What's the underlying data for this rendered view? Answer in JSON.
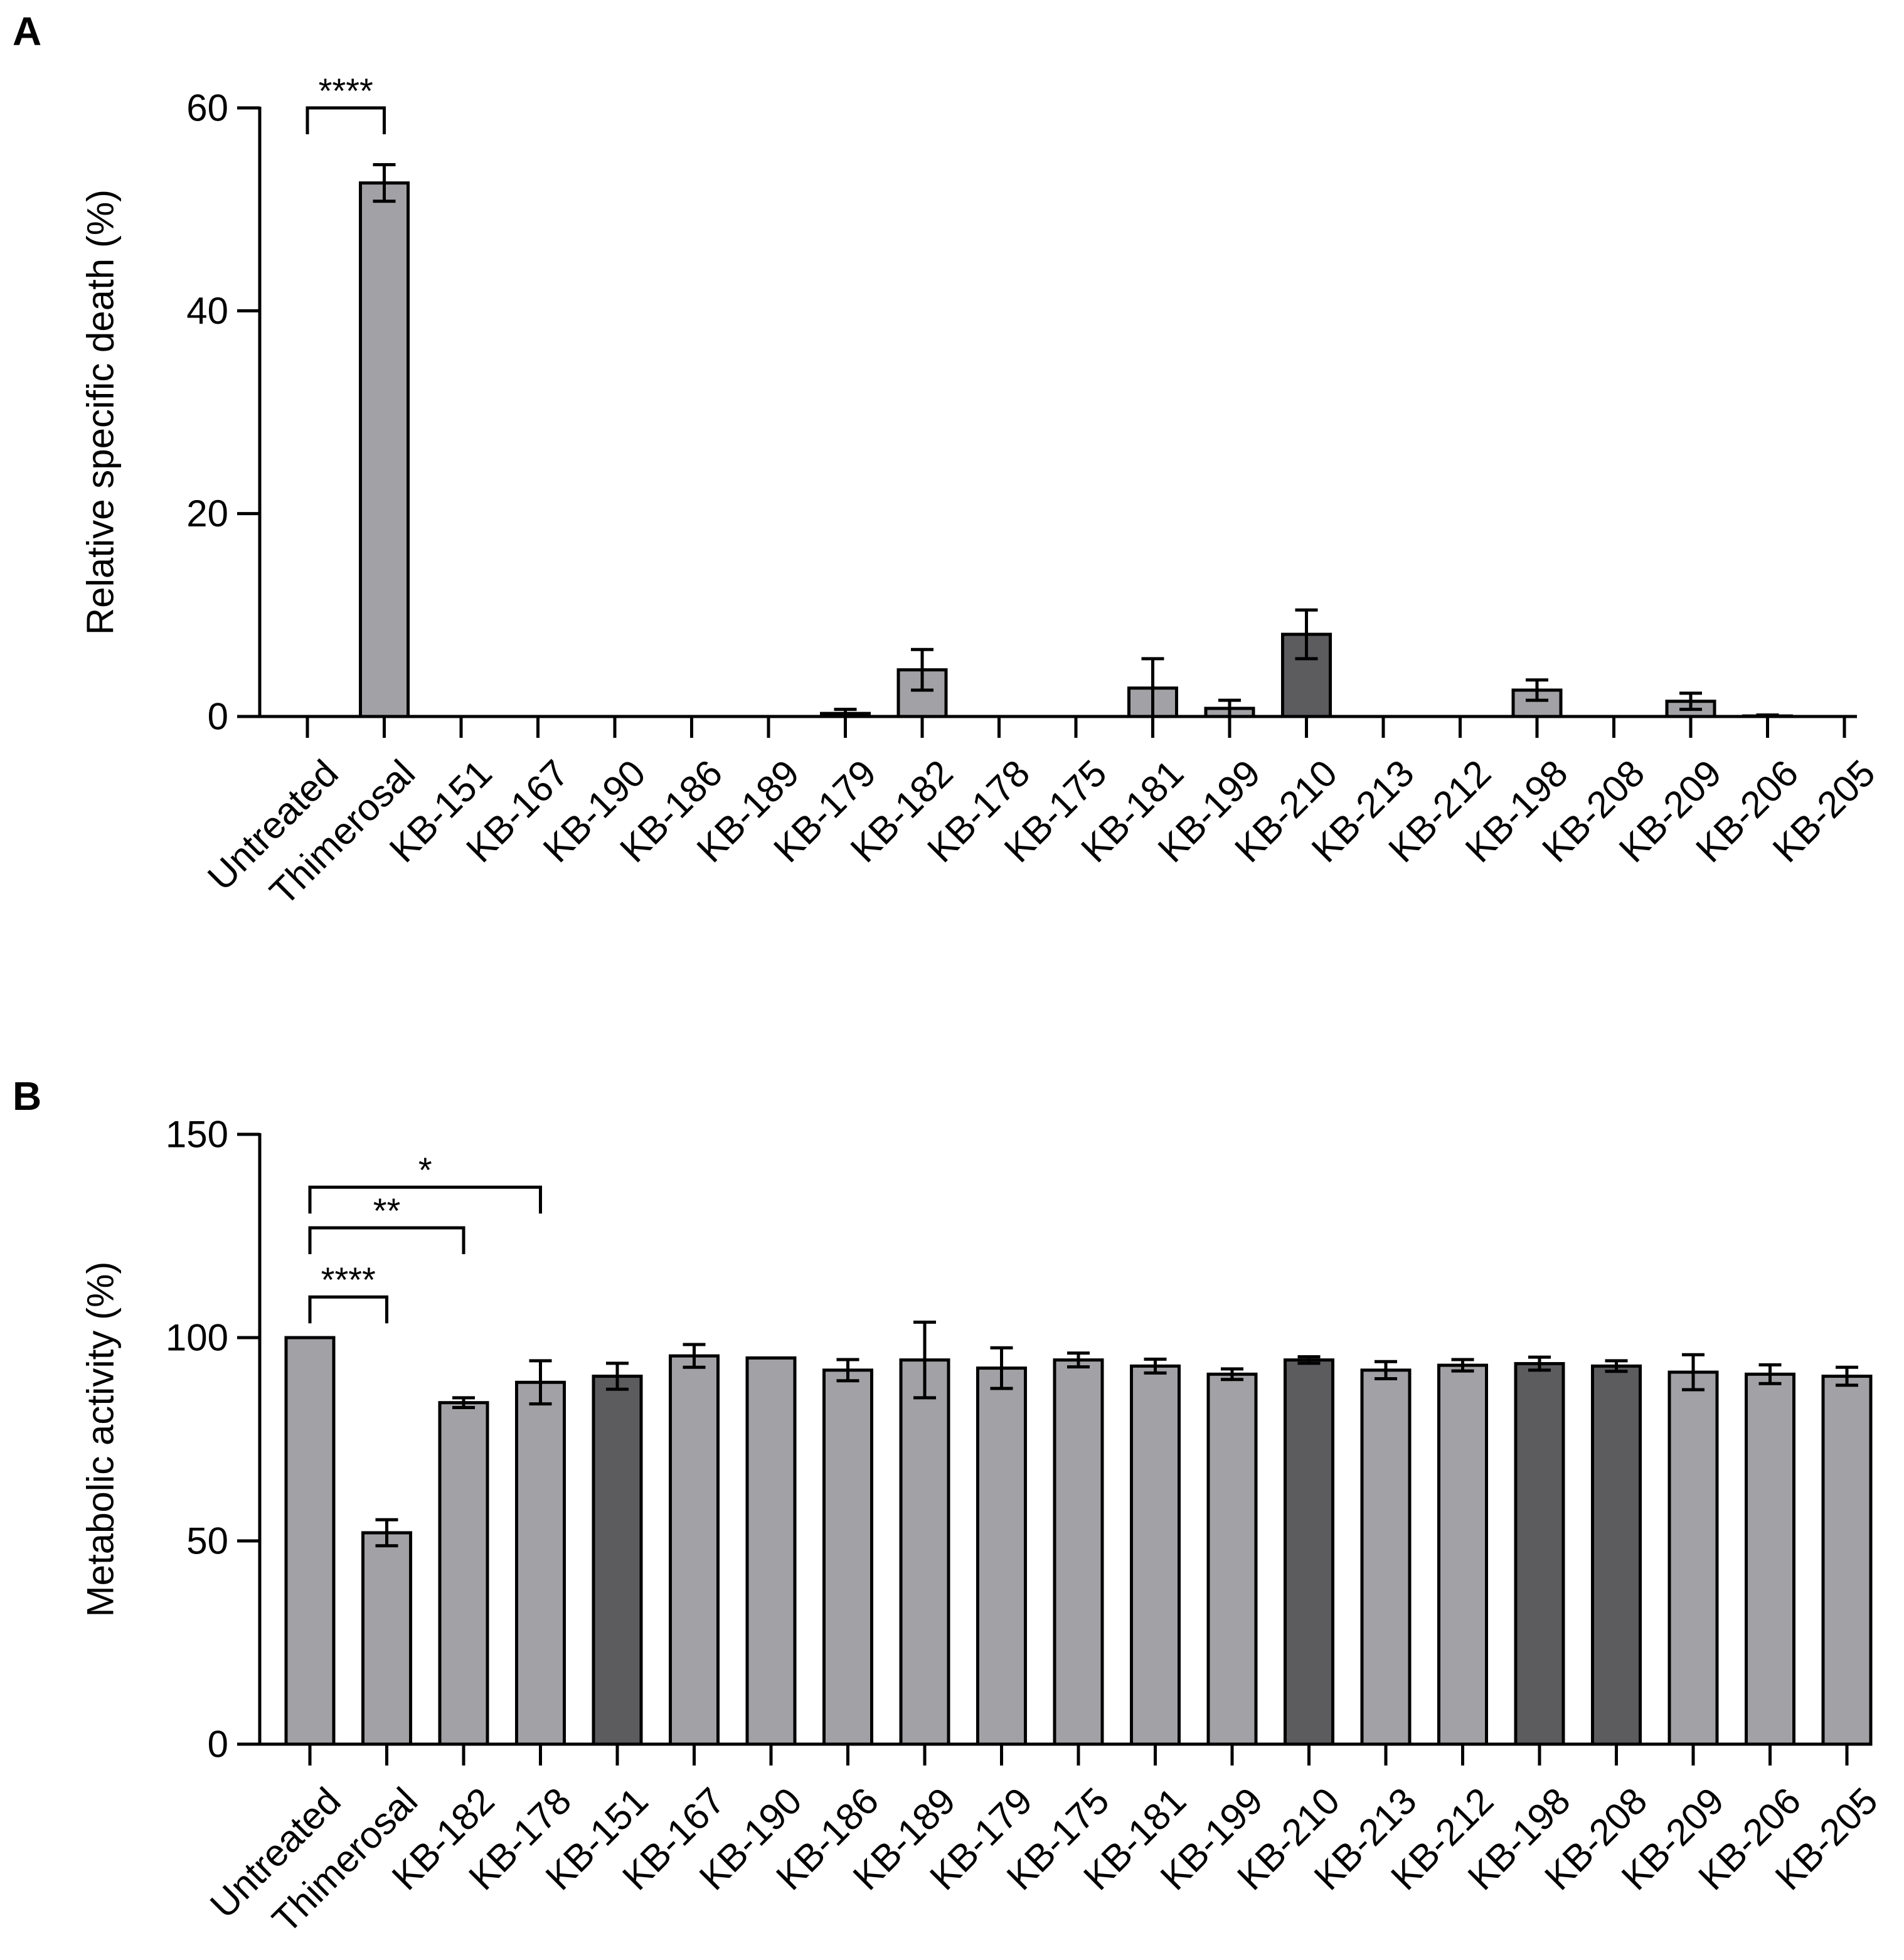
{
  "panels": [
    {
      "letter": "A"
    },
    {
      "letter": "B"
    }
  ],
  "chart_data": [
    {
      "panel": "A",
      "type": "bar",
      "ylabel": "Relative specific death (%)",
      "xlabel": "",
      "ylim": [
        0,
        60
      ],
      "yticks": [
        0,
        20,
        40,
        60
      ],
      "categories": [
        "Untreated",
        "Thimerosal",
        "KB-151",
        "KB-167",
        "KB-190",
        "KB-186",
        "KB-189",
        "KB-179",
        "KB-182",
        "KB-178",
        "KB-175",
        "KB-181",
        "KB-199",
        "KB-210",
        "KB-213",
        "KB-212",
        "KB-198",
        "KB-208",
        "KB-209",
        "KB-206",
        "KB-205"
      ],
      "values": [
        0,
        52.6,
        0,
        0,
        0,
        0,
        0,
        0.3,
        4.6,
        0,
        0,
        2.8,
        0.8,
        8.1,
        0,
        0,
        2.6,
        0,
        1.5,
        0.05,
        0
      ],
      "errors": [
        0,
        1.8,
        0,
        0,
        0,
        0,
        0,
        0.4,
        2.0,
        0,
        0,
        2.9,
        0.8,
        2.4,
        0,
        0,
        1.0,
        0,
        0.8,
        0.1,
        0
      ],
      "bar_colors": [
        "light",
        "light",
        "light",
        "light",
        "light",
        "light",
        "light",
        "light",
        "light",
        "light",
        "light",
        "light",
        "light",
        "dark",
        "light",
        "light",
        "light",
        "light",
        "light",
        "light",
        "light"
      ],
      "significance": [
        {
          "from": 0,
          "to": 1,
          "label": "****",
          "y": 60
        }
      ]
    },
    {
      "panel": "B",
      "type": "bar",
      "ylabel": "Metabolic activity (%)",
      "xlabel": "",
      "ylim": [
        0,
        150
      ],
      "yticks": [
        0,
        50,
        100,
        150
      ],
      "categories": [
        "Untreated",
        "Thimerosal",
        "KB-182",
        "KB-178",
        "KB-151",
        "KB-167",
        "KB-190",
        "KB-186",
        "KB-189",
        "KB-179",
        "KB-175",
        "KB-181",
        "KB-199",
        "KB-210",
        "KB-213",
        "KB-212",
        "KB-198",
        "KB-208",
        "KB-209",
        "KB-206",
        "KB-205"
      ],
      "values": [
        100,
        52,
        84,
        89,
        90.5,
        95.5,
        95,
        92,
        94.5,
        92.5,
        94.5,
        93,
        91,
        94.5,
        92,
        93.2,
        93.6,
        93,
        91.5,
        91,
        90.5
      ],
      "errors": [
        0,
        3.2,
        1.2,
        5.3,
        3.2,
        2.8,
        0,
        2.6,
        9.3,
        5.0,
        1.7,
        1.7,
        1.3,
        0.8,
        2.1,
        1.4,
        1.6,
        1.3,
        4.3,
        2.3,
        2.2
      ],
      "bar_colors": [
        "light",
        "light",
        "light",
        "light",
        "dark",
        "light",
        "light",
        "light",
        "light",
        "light",
        "light",
        "light",
        "light",
        "dark",
        "light",
        "light",
        "dark",
        "dark",
        "light",
        "light",
        "light"
      ],
      "significance": [
        {
          "from": 0,
          "to": 1,
          "label": "****",
          "y": 110
        },
        {
          "from": 0,
          "to": 2,
          "label": "**",
          "y": 127
        },
        {
          "from": 0,
          "to": 3,
          "label": "*",
          "y": 137
        }
      ]
    }
  ],
  "colors": {
    "light": "#a2a2a6",
    "dark": "#5c5c5e",
    "ink": "#000000",
    "background": "#ffffff"
  }
}
